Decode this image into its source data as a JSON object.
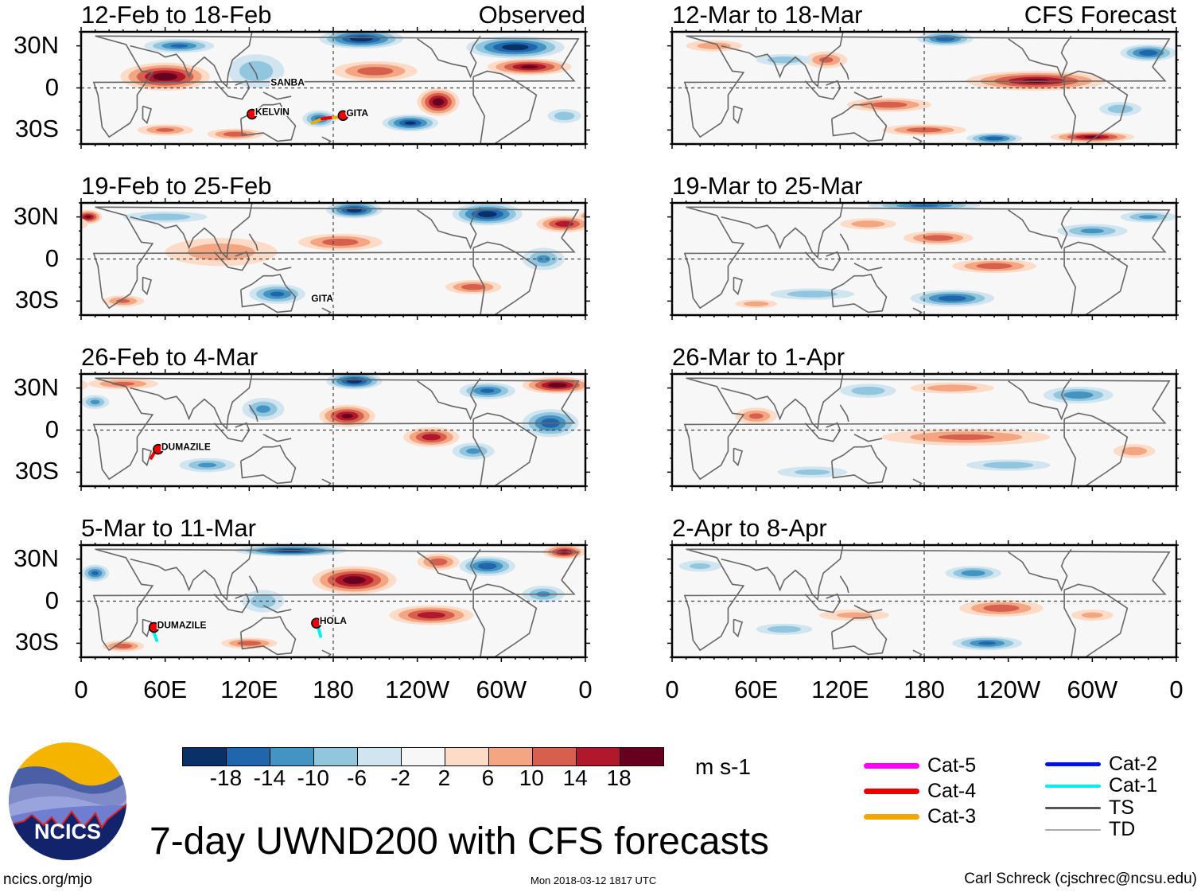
{
  "panels": [
    {
      "title": "12-Feb to 18-Feb",
      "label": "Observed",
      "blobs": [
        [
          60,
          8,
          32,
          10,
          20
        ],
        [
          200,
          35,
          30,
          7,
          -20
        ],
        [
          310,
          29,
          35,
          8,
          -20
        ],
        [
          320,
          15,
          30,
          6,
          18
        ],
        [
          210,
          12,
          30,
          7,
          12
        ],
        [
          255,
          -10,
          15,
          10,
          20
        ],
        [
          235,
          -25,
          20,
          6,
          -18
        ],
        [
          170,
          -22,
          12,
          6,
          -14
        ],
        [
          70,
          30,
          25,
          5,
          -14
        ],
        [
          125,
          12,
          20,
          12,
          -8
        ],
        [
          110,
          -33,
          20,
          4,
          12
        ],
        [
          60,
          -30,
          20,
          4,
          10
        ],
        [
          345,
          -20,
          12,
          5,
          -8
        ]
      ],
      "storms": [
        {
          "name": "SANBA",
          "lon": 133,
          "lat": 4,
          "track": []
        },
        {
          "name": "KELVIN",
          "lon": 122,
          "lat": -17,
          "track": [
            [
              121,
              -17,
              4
            ]
          ]
        },
        {
          "name": "GITA",
          "lon": 187,
          "lat": -18,
          "track": [
            [
              165,
              -25,
              1
            ],
            [
              172,
              -22,
              3
            ],
            [
              180,
              -21,
              4
            ],
            [
              187,
              -21,
              3
            ]
          ]
        }
      ]
    },
    {
      "title": "12-Mar to 18-Mar",
      "label": "CFS Forecast",
      "blobs": [
        [
          195,
          35,
          20,
          5,
          -16
        ],
        [
          340,
          25,
          20,
          6,
          -16
        ],
        [
          260,
          5,
          50,
          7,
          18
        ],
        [
          155,
          -12,
          30,
          5,
          12
        ],
        [
          180,
          -30,
          30,
          4,
          12
        ],
        [
          300,
          -35,
          30,
          4,
          18
        ],
        [
          230,
          -36,
          20,
          4,
          -16
        ],
        [
          110,
          20,
          15,
          6,
          10
        ],
        [
          80,
          20,
          20,
          4,
          -8
        ],
        [
          320,
          -15,
          15,
          5,
          -8
        ],
        [
          30,
          30,
          20,
          4,
          8
        ]
      ],
      "storms": []
    },
    {
      "title": "19-Feb to 25-Feb",
      "label": "",
      "blobs": [
        [
          195,
          35,
          20,
          6,
          -20
        ],
        [
          290,
          32,
          25,
          8,
          -20
        ],
        [
          5,
          30,
          10,
          5,
          18
        ],
        [
          345,
          25,
          20,
          6,
          16
        ],
        [
          185,
          12,
          30,
          6,
          12
        ],
        [
          100,
          5,
          40,
          10,
          8
        ],
        [
          140,
          -25,
          20,
          7,
          -14
        ],
        [
          280,
          -20,
          20,
          5,
          12
        ],
        [
          330,
          0,
          15,
          8,
          -10
        ],
        [
          60,
          30,
          30,
          4,
          -8
        ],
        [
          30,
          -30,
          15,
          4,
          10
        ]
      ],
      "storms": [
        {
          "name": "GITA",
          "lon": 162,
          "lat": -28,
          "track": []
        }
      ]
    },
    {
      "title": "19-Mar to 25-Mar",
      "label": "",
      "blobs": [
        [
          180,
          38,
          40,
          3,
          -14
        ],
        [
          190,
          15,
          25,
          5,
          12
        ],
        [
          230,
          -5,
          30,
          5,
          12
        ],
        [
          200,
          -28,
          30,
          6,
          -16
        ],
        [
          300,
          20,
          25,
          5,
          -10
        ],
        [
          140,
          25,
          20,
          4,
          8
        ],
        [
          100,
          -25,
          30,
          4,
          -8
        ],
        [
          60,
          -32,
          15,
          3,
          8
        ],
        [
          340,
          30,
          20,
          4,
          -10
        ]
      ],
      "storms": []
    },
    {
      "title": "26-Feb to 4-Mar",
      "label": "",
      "blobs": [
        [
          195,
          35,
          20,
          6,
          -20
        ],
        [
          340,
          32,
          25,
          6,
          20
        ],
        [
          190,
          10,
          20,
          8,
          18
        ],
        [
          250,
          -5,
          20,
          7,
          16
        ],
        [
          335,
          5,
          20,
          10,
          -16
        ],
        [
          290,
          28,
          20,
          6,
          -14
        ],
        [
          30,
          33,
          25,
          4,
          10
        ],
        [
          130,
          15,
          15,
          8,
          -10
        ],
        [
          280,
          -15,
          15,
          6,
          -10
        ],
        [
          90,
          -25,
          20,
          5,
          -10
        ],
        [
          10,
          20,
          10,
          5,
          -10
        ]
      ],
      "storms": [
        {
          "name": "DUMAZILE",
          "lon": 55,
          "lat": -12,
          "track": [
            [
              50,
              -20,
              1
            ],
            [
              54,
              -13,
              4
            ]
          ]
        }
      ]
    },
    {
      "title": "26-Mar to 1-Apr",
      "label": "",
      "blobs": [
        [
          60,
          10,
          15,
          6,
          10
        ],
        [
          210,
          -5,
          60,
          6,
          10
        ],
        [
          290,
          25,
          25,
          6,
          -12
        ],
        [
          140,
          28,
          20,
          5,
          -8
        ],
        [
          200,
          30,
          30,
          4,
          8
        ],
        [
          240,
          -25,
          30,
          4,
          -8
        ],
        [
          330,
          -15,
          15,
          5,
          8
        ],
        [
          100,
          -30,
          25,
          4,
          -6
        ]
      ],
      "storms": []
    },
    {
      "title": "5-Mar to 11-Mar",
      "label": "",
      "blobs": [
        [
          150,
          36,
          40,
          4,
          -20
        ],
        [
          195,
          15,
          30,
          10,
          20
        ],
        [
          250,
          -10,
          30,
          7,
          16
        ],
        [
          290,
          25,
          20,
          7,
          -16
        ],
        [
          345,
          35,
          15,
          5,
          18
        ],
        [
          10,
          20,
          10,
          6,
          -14
        ],
        [
          130,
          0,
          15,
          8,
          -8
        ],
        [
          120,
          -30,
          20,
          4,
          12
        ],
        [
          30,
          -32,
          15,
          4,
          12
        ],
        [
          330,
          5,
          15,
          6,
          -10
        ],
        [
          255,
          28,
          15,
          6,
          12
        ]
      ],
      "storms": [
        {
          "name": "DUMAZILE",
          "lon": 52,
          "lat": -17,
          "track": [
            [
              50,
              -17,
              3
            ],
            [
              54,
              -28,
              1
            ]
          ]
        },
        {
          "name": "HOLA",
          "lon": 168,
          "lat": -14,
          "track": [
            [
              168,
              -14,
              4
            ],
            [
              171,
              -25,
              1
            ]
          ]
        }
      ]
    },
    {
      "title": "2-Apr to 8-Apr",
      "label": "",
      "blobs": [
        [
          215,
          20,
          20,
          5,
          -12
        ],
        [
          235,
          -5,
          30,
          6,
          12
        ],
        [
          225,
          -30,
          25,
          5,
          -14
        ],
        [
          80,
          -20,
          20,
          4,
          -8
        ],
        [
          130,
          -10,
          25,
          4,
          6
        ],
        [
          20,
          25,
          15,
          4,
          -6
        ],
        [
          300,
          -10,
          15,
          4,
          6
        ]
      ],
      "storms": []
    }
  ],
  "y_axis_labels": [
    "30N",
    "0",
    "30S"
  ],
  "x_axis_labels": [
    "0",
    "60E",
    "120E",
    "180",
    "120W",
    "60W",
    "0"
  ],
  "colorbar": {
    "colors": [
      "#0a3068",
      "#2166ac",
      "#4393c3",
      "#92c5de",
      "#d1e5f0",
      "#f7f7f7",
      "#fddbc7",
      "#f4a582",
      "#d6604d",
      "#b2182b",
      "#67001f"
    ],
    "ticks": [
      "-18",
      "-14",
      "-10",
      "-6",
      "-2",
      "2",
      "6",
      "10",
      "14",
      "18"
    ],
    "units": "m s-1"
  },
  "legend": [
    {
      "label": "Cat-5",
      "color": "#ff00ff"
    },
    {
      "label": "Cat-4",
      "color": "#ee0000"
    },
    {
      "label": "Cat-3",
      "color": "#f0a800"
    },
    {
      "label": "Cat-2",
      "color": "#0010ee"
    },
    {
      "label": "Cat-1",
      "color": "#00f0f0"
    },
    {
      "label": "TS",
      "color": "#555555"
    },
    {
      "label": "TD",
      "color": "#aaaaaa"
    }
  ],
  "title": "7-day UWND200 with CFS forecasts",
  "logo_text": "NCICS",
  "footer": {
    "left": "ncics.org/mjo",
    "center": "Mon 2018-03-12 1817 UTC",
    "right": "Carl Schreck (cjschrec@ncsu.edu)"
  }
}
